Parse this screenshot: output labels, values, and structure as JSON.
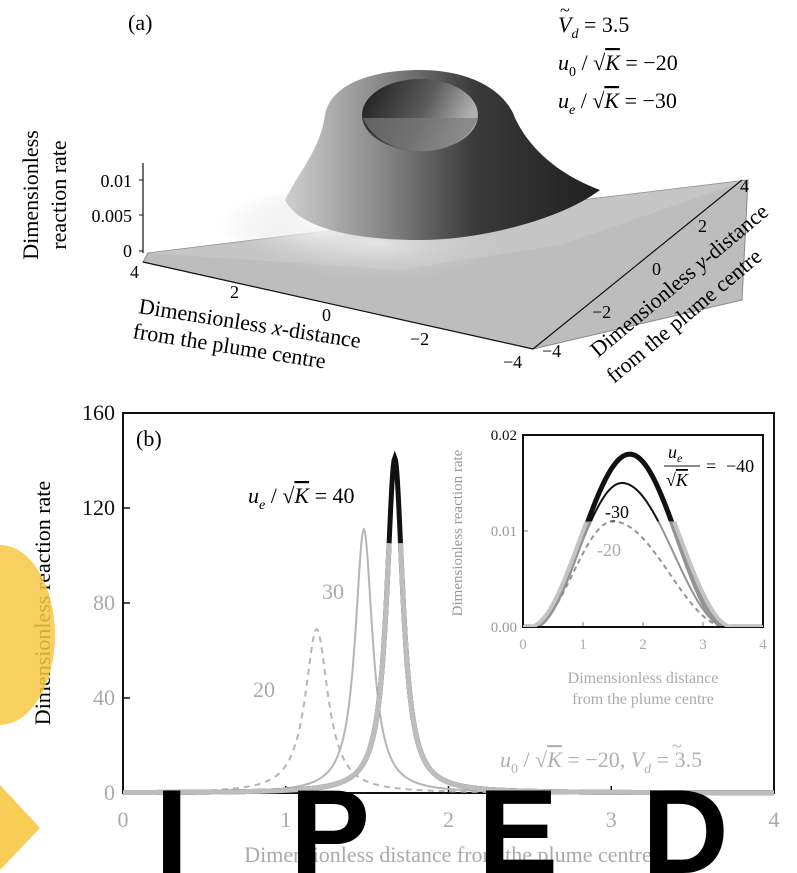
{
  "chart_data": [
    {
      "panel": "(a)",
      "type": "surface",
      "zlabel": [
        "Dimensionless",
        "reaction rate"
      ],
      "xlabel": [
        "Dimensionless x-distance",
        "from the plume centre"
      ],
      "ylabel": [
        "Dimensionless y-distance",
        "from the plume centre"
      ],
      "x_ticks": [
        "4",
        "2",
        "0",
        "−2",
        "−4"
      ],
      "y_ticks": [
        "−4",
        "−2",
        "0",
        "2",
        "4"
      ],
      "z_ticks": [
        "0",
        "0.005",
        "0.01"
      ],
      "params": [
        "Ṽ_d = 3.5",
        "u₀ / √K = −20",
        "uₑ / √K = −30"
      ],
      "ring_radius": 1.7,
      "peak_rate": 0.012
    },
    {
      "panel": "(b)",
      "type": "line",
      "xlabel": "Dimensionless distance from the plume centre",
      "ylabel": "Dimensionless reaction rate",
      "xlim": [
        0,
        4
      ],
      "ylim": [
        0,
        160
      ],
      "x_ticks": [
        "0",
        "1",
        "2",
        "3",
        "4"
      ],
      "y_ticks": [
        "0",
        "40",
        "80",
        "120",
        "160"
      ],
      "annotation": "u₀ / √K = −20,   Ṽ_d = 3.5",
      "series_label_prefix": "uₑ / √K = ",
      "series": [
        {
          "name": "40",
          "peak_x": 1.67,
          "peak_y": 141,
          "width": 0.06,
          "style": "thick"
        },
        {
          "name": "30",
          "peak_x": 1.48,
          "peak_y": 111,
          "width": 0.065,
          "style": "solid"
        },
        {
          "name": "20",
          "peak_x": 1.19,
          "peak_y": 69,
          "width": 0.085,
          "style": "dashed"
        }
      ]
    },
    {
      "panel": "inset",
      "type": "line",
      "xlabel": [
        "Dimensionless distance",
        "from the plume centre"
      ],
      "ylabel": "Dimensionless reaction rate",
      "xlim": [
        0,
        4
      ],
      "ylim": [
        0,
        0.02
      ],
      "x_ticks": [
        "0",
        "1",
        "2",
        "3",
        "4"
      ],
      "y_ticks": [
        "0.00",
        "0.01",
        "0.02"
      ],
      "series_label_prefix": "uₑ / √K = ",
      "series": [
        {
          "name": "−40",
          "peak_x": 1.78,
          "peak_y": 0.018,
          "style": "thick"
        },
        {
          "name": "-30",
          "peak_x": 1.65,
          "peak_y": 0.015,
          "style": "solid"
        },
        {
          "name": "-20",
          "peak_x": 1.5,
          "peak_y": 0.011,
          "style": "dashed"
        }
      ]
    }
  ],
  "watermark": {
    "letters": [
      "I",
      "P",
      "E",
      "D"
    ]
  }
}
